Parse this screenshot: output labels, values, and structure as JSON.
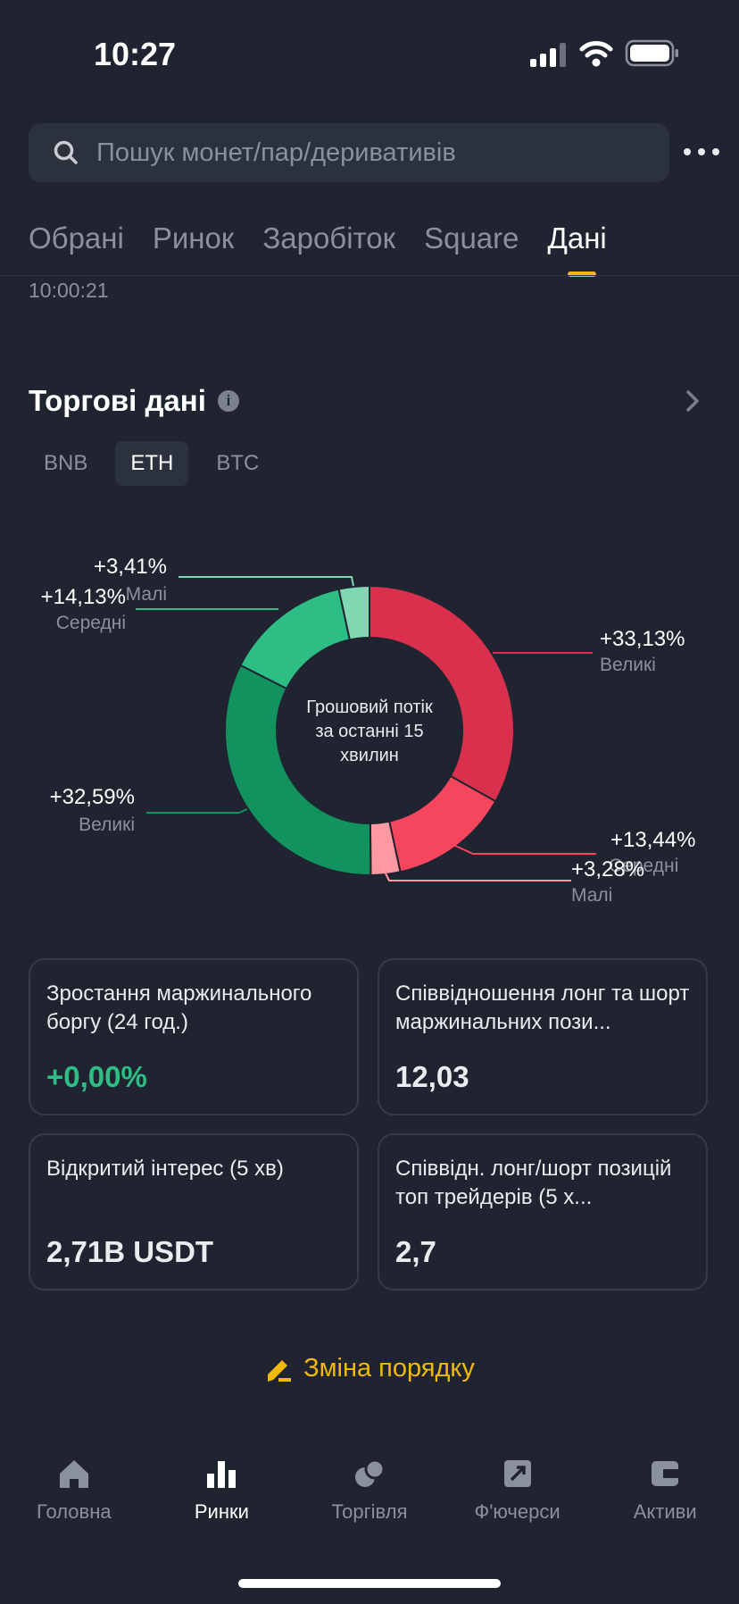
{
  "status_bar": {
    "time": "10:27"
  },
  "search": {
    "placeholder": "Пошук монет/пар/деривативів"
  },
  "tabs": [
    {
      "label": "Обрані"
    },
    {
      "label": "Ринок"
    },
    {
      "label": "Заробіток"
    },
    {
      "label": "Square"
    },
    {
      "label": "Дані",
      "active": true
    }
  ],
  "timestamp": "10:00:21",
  "section": {
    "title": "Торгові дані"
  },
  "chips": [
    {
      "label": "BNB"
    },
    {
      "label": "ETH",
      "selected": true
    },
    {
      "label": "BTC"
    }
  ],
  "chart_data": {
    "type": "pie",
    "title": "Грошовий потік за останні 15 хвилин",
    "title_lines": [
      "Грошовий потік",
      "за останні 15",
      "хвилин"
    ],
    "slices": [
      {
        "label": "Великі",
        "pct_label": "+33,13%",
        "value": 33.13,
        "color": "#d9304e"
      },
      {
        "label": "Середні",
        "pct_label": "+13,44%",
        "value": 13.44,
        "color": "#f6465d"
      },
      {
        "label": "Малі",
        "pct_label": "+3,28%",
        "value": 3.28,
        "color": "#ff9aa2"
      },
      {
        "label": "Великі",
        "pct_label": "+32,59%",
        "value": 32.59,
        "color": "#12925f"
      },
      {
        "label": "Середні",
        "pct_label": "+14,13%",
        "value": 14.13,
        "color": "#2ebd85"
      },
      {
        "label": "Малі",
        "pct_label": "+3,41%",
        "value": 3.41,
        "color": "#7fd8b1"
      }
    ]
  },
  "cards": [
    {
      "title": "Зростання маржинального боргу (24 год.)",
      "value": "+0,00%"
    },
    {
      "title": "Співвідношення лонг та шорт маржинальних пози...",
      "value": "12,03"
    },
    {
      "title": "Відкритий інтерес (5 хв)",
      "value": "2,71B USDT"
    },
    {
      "title": "Співвідн. лонг/шорт позицій топ трейдерів (5 х...",
      "value": "2,7"
    }
  ],
  "reorder": {
    "label": "Зміна порядку"
  },
  "nav": [
    {
      "label": "Головна"
    },
    {
      "label": "Ринки",
      "active": true
    },
    {
      "label": "Торгівля"
    },
    {
      "label": "Ф'ючерси"
    },
    {
      "label": "Активи"
    }
  ],
  "colors": {
    "accent": "#f0b90b",
    "up": "#2ebd85",
    "down": "#f6465d",
    "bg": "#1f2430"
  }
}
